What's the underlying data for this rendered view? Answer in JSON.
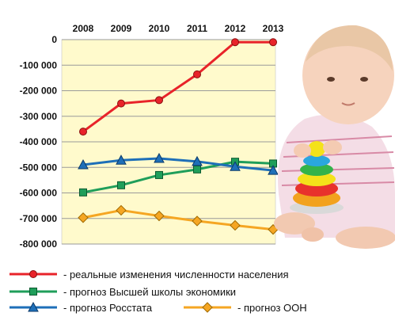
{
  "chart_data": {
    "type": "line",
    "x": [
      "2008",
      "2009",
      "2010",
      "2011",
      "2012",
      "2013"
    ],
    "ylim": [
      -800000,
      0
    ],
    "yticks": [
      0,
      -100000,
      -200000,
      -300000,
      -400000,
      -500000,
      -600000,
      -700000,
      -800000
    ],
    "ytick_labels": [
      "0",
      "-100 000",
      "-200 000",
      "-300 000",
      "-400 000",
      "-500 000",
      "-600 000",
      "-700 000",
      "-800 000"
    ],
    "xtick_position": "top",
    "grid": "horizontal",
    "legend_position": "bottom",
    "background_color": "#FFFACC",
    "series": [
      {
        "name": "- реальные изменения численности населения",
        "color": "#E8232A",
        "marker": "circle",
        "values": [
          -360000,
          -250000,
          -237000,
          -136000,
          -10000,
          -10000
        ]
      },
      {
        "name": "- прогноз Высшей школы экономики",
        "color": "#1F9E5A",
        "marker": "square",
        "values": [
          -598000,
          -570000,
          -530000,
          -508000,
          -478000,
          -485000
        ]
      },
      {
        "name": "- прогноз Росстата",
        "color": "#1E6FB8",
        "marker": "triangle",
        "values": [
          -490000,
          -472000,
          -465000,
          -477000,
          -497000,
          -512000
        ]
      },
      {
        "name": "- прогноз ООН",
        "color": "#F5A623",
        "marker": "diamond",
        "values": [
          -697000,
          -668000,
          -690000,
          -710000,
          -727000,
          -743000
        ]
      }
    ]
  },
  "photo": {
    "icon": "baby-with-ring-stacker-photo"
  }
}
